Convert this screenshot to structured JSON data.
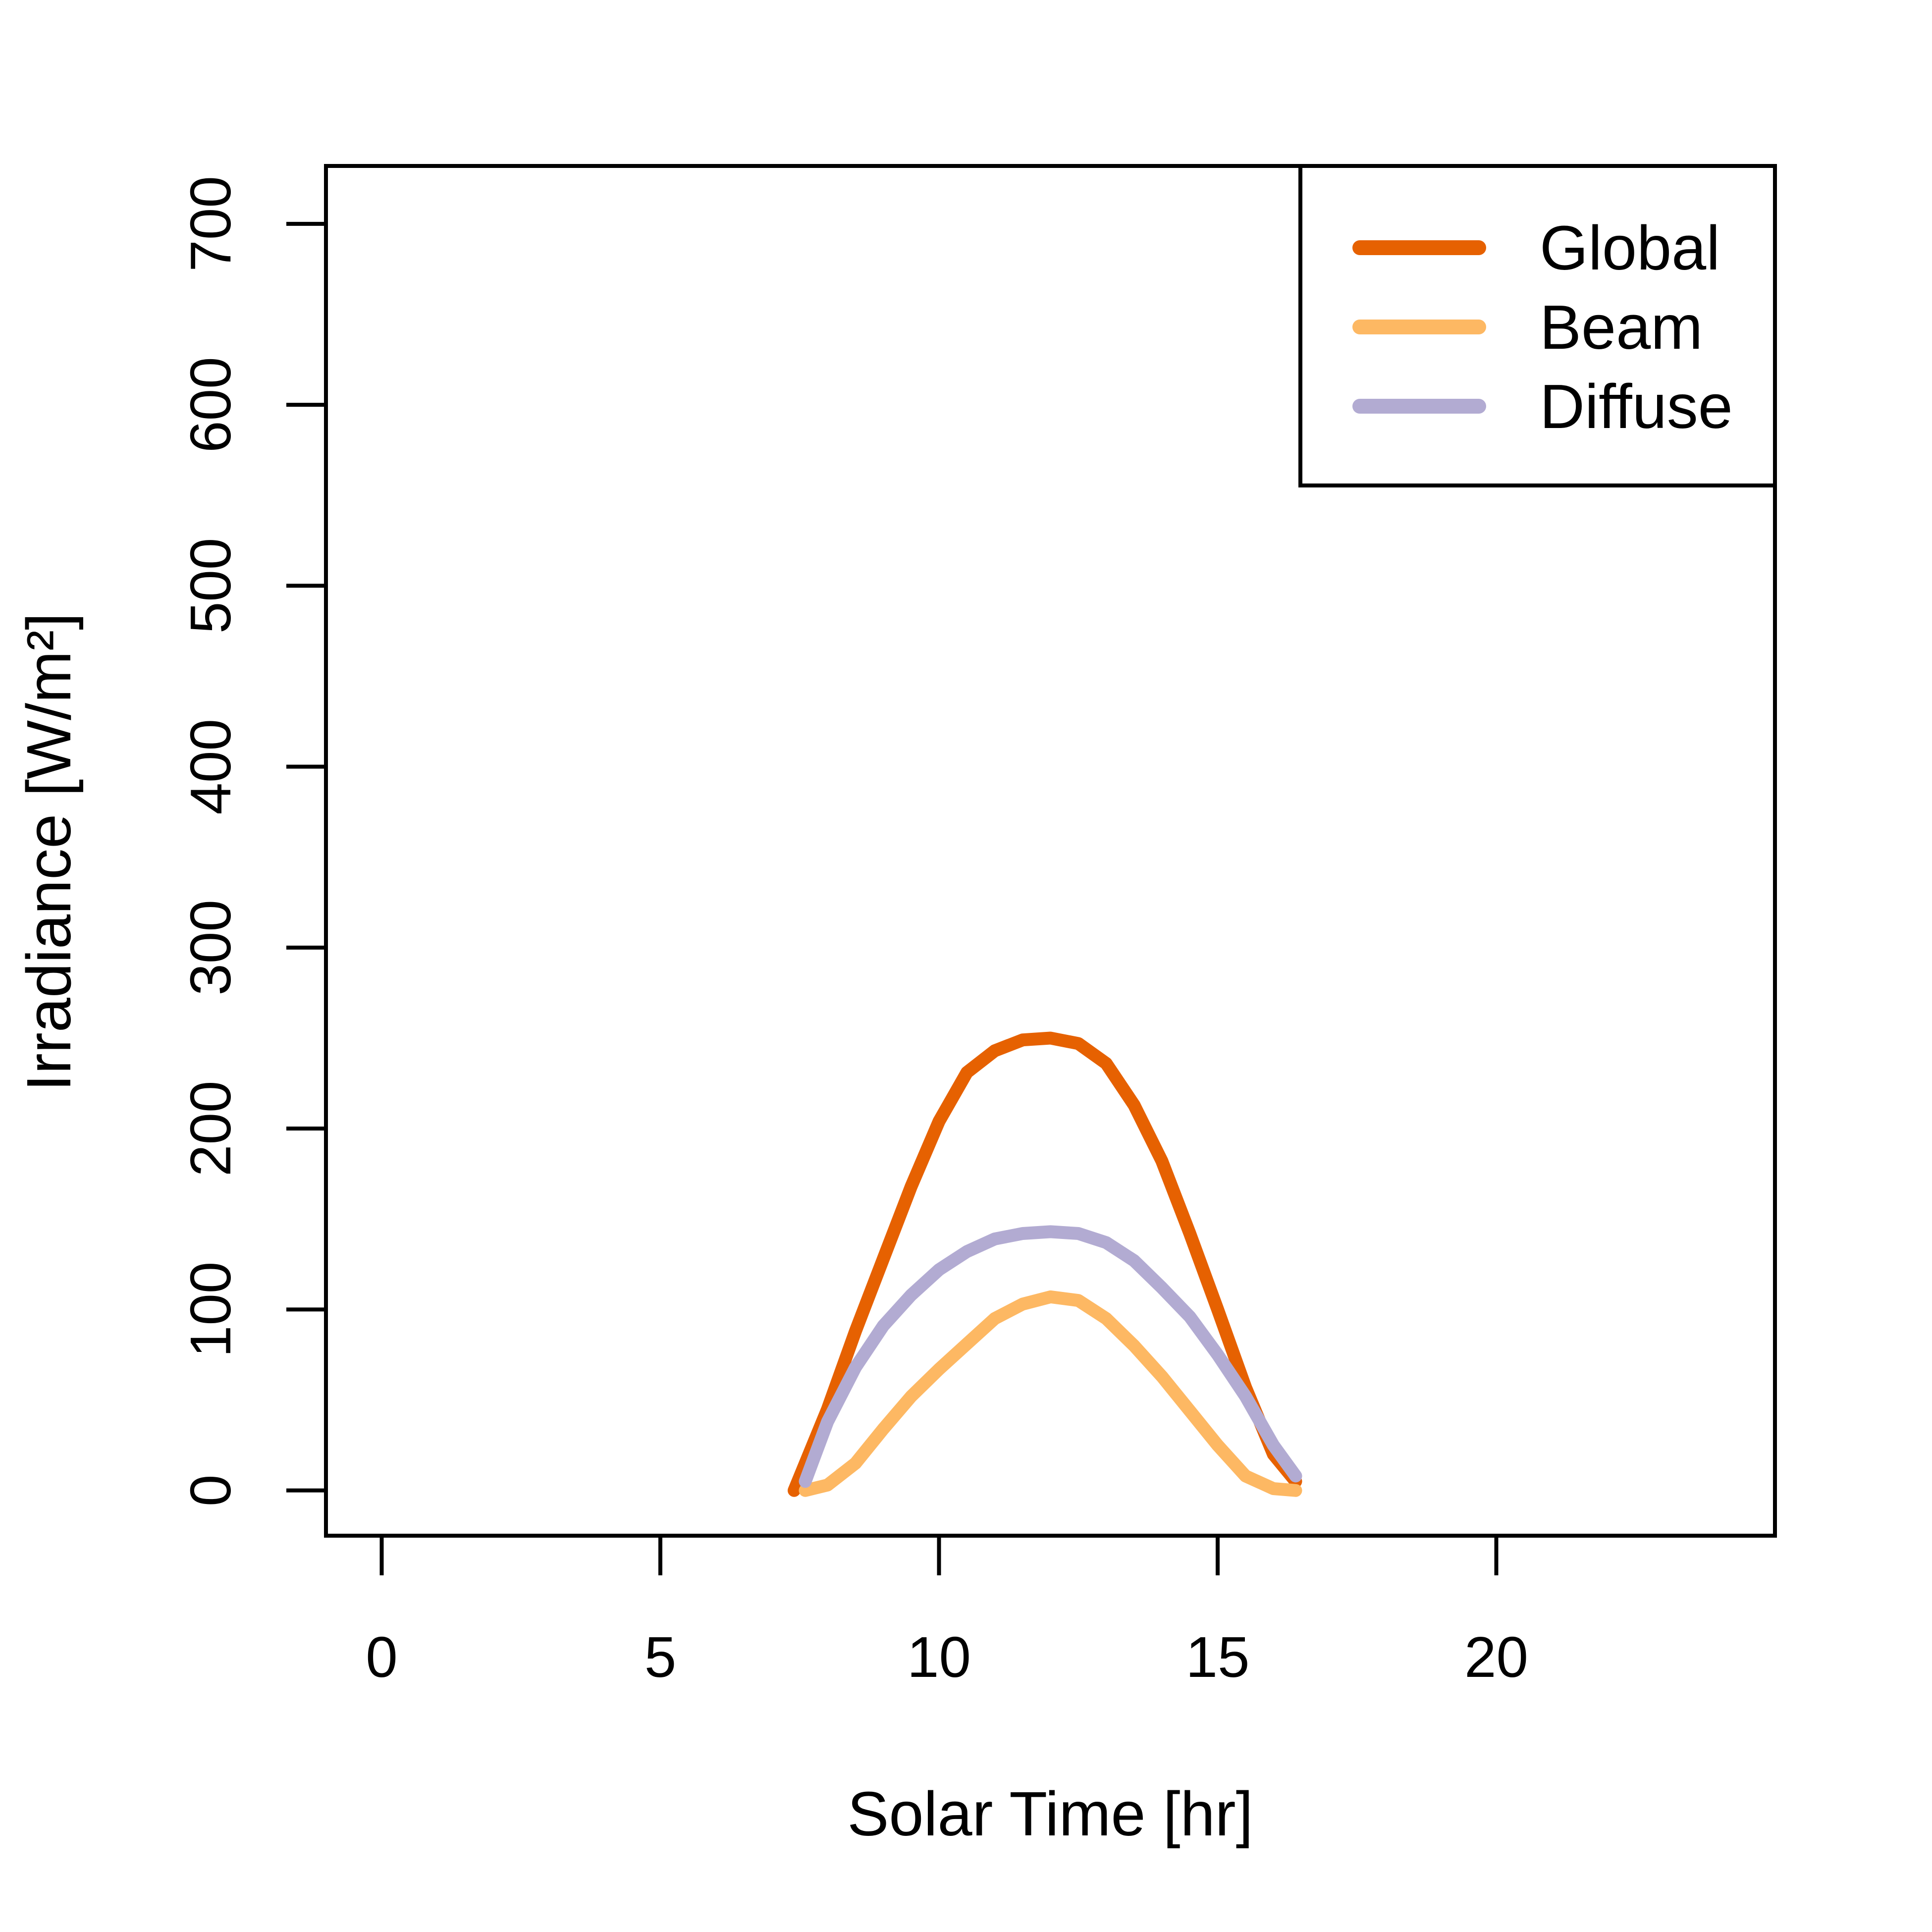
{
  "chart_data": {
    "type": "line",
    "title": "",
    "xlabel": "Solar Time [hr]",
    "ylabel": "Irradiance [W/m²]",
    "xlim": [
      -1,
      25
    ],
    "ylim": [
      -25,
      732
    ],
    "x_ticks": [
      0,
      5,
      10,
      15,
      20
    ],
    "y_ticks": [
      0,
      100,
      200,
      300,
      400,
      500,
      600,
      700
    ],
    "grid": false,
    "legend_position": "top-right",
    "series": [
      {
        "name": "Global",
        "color": "#e66101",
        "x": [
          7.4,
          7.6,
          8.0,
          8.5,
          9.0,
          9.5,
          10.0,
          10.5,
          11.0,
          11.5,
          12.0,
          12.5,
          13.0,
          13.5,
          14.0,
          14.5,
          15.0,
          15.5,
          16.0,
          16.4
        ],
        "y": [
          0,
          15,
          45,
          88,
          128,
          168,
          204,
          231,
          243,
          249,
          250,
          247,
          236,
          213,
          182,
          142,
          100,
          57,
          20,
          5
        ]
      },
      {
        "name": "Beam",
        "color": "#fdb863",
        "x": [
          7.6,
          8.0,
          8.5,
          9.0,
          9.5,
          10.0,
          10.5,
          11.0,
          11.5,
          12.0,
          12.5,
          13.0,
          13.5,
          14.0,
          14.5,
          15.0,
          15.5,
          16.0,
          16.4
        ],
        "y": [
          0,
          3,
          15,
          34,
          52,
          67,
          81,
          95,
          103,
          107,
          105,
          95,
          80,
          63,
          44,
          25,
          8,
          1,
          0
        ]
      },
      {
        "name": "Diffuse",
        "color": "#b2abd2",
        "x": [
          7.6,
          8.0,
          8.5,
          9.0,
          9.5,
          10.0,
          10.5,
          11.0,
          11.5,
          12.0,
          12.5,
          13.0,
          13.5,
          14.0,
          14.5,
          15.0,
          15.5,
          16.0,
          16.4
        ],
        "y": [
          5,
          38,
          68,
          91,
          108,
          122,
          132,
          139,
          142,
          143,
          142,
          137,
          127,
          112,
          96,
          75,
          52,
          25,
          8
        ]
      }
    ]
  }
}
